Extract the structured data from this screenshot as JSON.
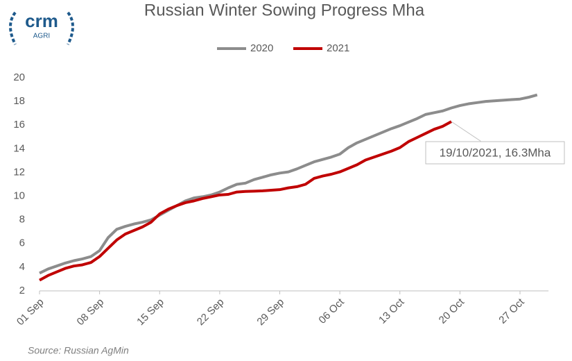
{
  "logo": {
    "name": "crm",
    "sub": "AGRI"
  },
  "chart_data": {
    "type": "line",
    "title": "Russian Winter Sowing Progress Mha",
    "categories": [
      "01 Sep",
      null,
      null,
      null,
      null,
      null,
      null,
      "08 Sep",
      null,
      null,
      null,
      null,
      null,
      null,
      "15 Sep",
      null,
      null,
      null,
      null,
      null,
      null,
      "22 Sep",
      null,
      null,
      null,
      null,
      null,
      null,
      "29 Sep",
      null,
      null,
      null,
      null,
      null,
      null,
      "06 Oct",
      null,
      null,
      null,
      null,
      null,
      null,
      "13 Oct",
      null,
      null,
      null,
      null,
      null,
      null,
      "20 Oct",
      null,
      null,
      null,
      null,
      null,
      null,
      "27 Oct",
      null,
      null,
      null
    ],
    "series": [
      {
        "name": "2020",
        "color": "#8c8c8c",
        "values": [
          3.5,
          3.85,
          4.1,
          4.35,
          4.55,
          4.7,
          4.9,
          5.4,
          6.5,
          7.2,
          7.45,
          7.65,
          7.8,
          8.0,
          8.4,
          8.8,
          9.2,
          9.6,
          9.85,
          9.95,
          10.1,
          10.35,
          10.7,
          11.0,
          11.1,
          11.4,
          11.6,
          11.8,
          11.95,
          12.05,
          12.3,
          12.6,
          12.9,
          13.1,
          13.3,
          13.55,
          14.1,
          14.5,
          14.8,
          15.1,
          15.4,
          15.7,
          15.95,
          16.25,
          16.55,
          16.9,
          17.05,
          17.2,
          17.45,
          17.65,
          17.8,
          17.9,
          18.0,
          18.05,
          18.1,
          18.15,
          18.2,
          18.35,
          18.55,
          null
        ]
      },
      {
        "name": "2021",
        "color": "#c00000",
        "values": [
          2.9,
          3.3,
          3.6,
          3.9,
          4.1,
          4.2,
          4.4,
          4.9,
          5.6,
          6.3,
          6.8,
          7.1,
          7.4,
          7.8,
          8.5,
          8.9,
          9.2,
          9.45,
          9.6,
          9.8,
          9.95,
          10.1,
          10.15,
          10.35,
          10.4,
          10.42,
          10.45,
          10.5,
          10.55,
          10.7,
          10.8,
          11.0,
          11.5,
          11.7,
          11.85,
          12.05,
          12.35,
          12.65,
          13.05,
          13.3,
          13.55,
          13.8,
          14.1,
          14.6,
          14.95,
          15.3,
          15.65,
          15.9,
          16.3,
          null,
          null,
          null,
          null,
          null,
          null,
          null,
          null,
          null,
          null,
          null
        ]
      }
    ],
    "ylim": [
      2,
      20
    ],
    "yticks": [
      2,
      4,
      6,
      8,
      10,
      12,
      14,
      16,
      18,
      20
    ],
    "annotation": "19/10/2021, 16.3Mha",
    "source": "Source: Russian AgMin"
  }
}
